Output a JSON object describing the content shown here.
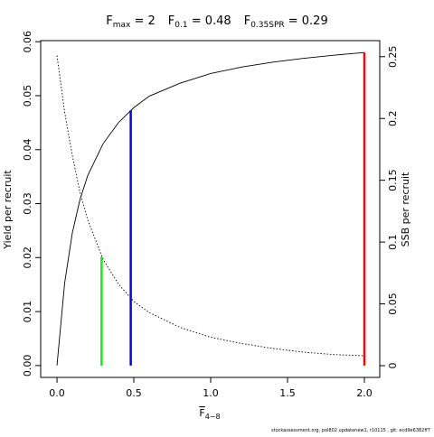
{
  "chart_data": {
    "type": "line",
    "title": {
      "parts": [
        {
          "main": "F",
          "sub": "max",
          "rest": " = 2"
        },
        {
          "main": "F",
          "sub": "0.1",
          "rest": " = 0.48"
        },
        {
          "main": "F",
          "sub": "0.35SPR",
          "rest": " = 0.29"
        }
      ]
    },
    "xlabel": {
      "main": "F",
      "sub": "4−8"
    },
    "ylabel": "Yield per recruit",
    "y2label": "SSB per recruit",
    "footnote": "stockassessment.org, pol802 updatenew1, r10115 , git: ecd9e6382ff7",
    "x": [
      0,
      0.05,
      0.1,
      0.15,
      0.2,
      0.3,
      0.4,
      0.5,
      0.6,
      0.8,
      1.0,
      1.2,
      1.4,
      1.6,
      1.8,
      2.0
    ],
    "series": [
      {
        "name": "Yield per recruit",
        "color": "#000000",
        "dash": "none",
        "values": [
          0,
          0.0153,
          0.0246,
          0.0308,
          0.0352,
          0.0411,
          0.045,
          0.0478,
          0.0499,
          0.0523,
          0.0541,
          0.0553,
          0.0562,
          0.0569,
          0.0575,
          0.058
        ]
      },
      {
        "name": "SSB per recruit",
        "color": "#000000",
        "dash": "1.5,2",
        "axis": "y2",
        "values": [
          0.251,
          0.205,
          0.17,
          0.14,
          0.118,
          0.086,
          0.066,
          0.052,
          0.043,
          0.031,
          0.023,
          0.018,
          0.014,
          0.011,
          0.009,
          0.008
        ]
      }
    ],
    "reference_points": [
      {
        "x": 0.29,
        "value": 0.088,
        "axis": "y2",
        "color": "#00ff00"
      },
      {
        "x": 0.48,
        "value": 0.0473,
        "color": "#0000ff"
      },
      {
        "x": 2,
        "value": 0.058,
        "color": "#ff0000"
      }
    ],
    "xlim": [
      -0.106,
      2.1
    ],
    "ylim": [
      -0.0022,
      0.0602
    ],
    "y2lim": [
      -0.0095,
      0.263
    ],
    "xticks": [
      {
        "value": 0,
        "label": "0.0"
      },
      {
        "value": 0.5,
        "label": "0.5"
      },
      {
        "value": 1,
        "label": "1.0"
      },
      {
        "value": 1.5,
        "label": "1.5"
      },
      {
        "value": 2,
        "label": "2.0"
      }
    ],
    "yticks": [
      {
        "value": 0,
        "label": "0.00"
      },
      {
        "value": 0.01,
        "label": "0.01"
      },
      {
        "value": 0.02,
        "label": "0.02"
      },
      {
        "value": 0.03,
        "label": "0.03"
      },
      {
        "value": 0.04,
        "label": "0.04"
      },
      {
        "value": 0.05,
        "label": "0.05"
      },
      {
        "value": 0.06,
        "label": "0.06"
      }
    ],
    "y2ticks": [
      0,
      0.05,
      0.1,
      0.15,
      0.2,
      0.25
    ]
  }
}
